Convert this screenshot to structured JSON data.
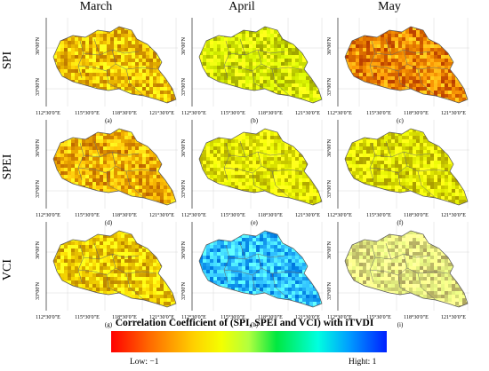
{
  "columns": [
    "March",
    "April",
    "May"
  ],
  "rows": [
    "SPI",
    "SPEI",
    "VCI"
  ],
  "panels": [
    {
      "label": "(a)",
      "index": "SPI",
      "month": "March",
      "dominant": "#f2c200"
    },
    {
      "label": "(b)",
      "index": "SPI",
      "month": "April",
      "dominant": "#d6f000"
    },
    {
      "label": "(c)",
      "index": "SPI",
      "month": "May",
      "dominant": "#f08a00"
    },
    {
      "label": "(d)",
      "index": "SPEI",
      "month": "March",
      "dominant": "#f2b000"
    },
    {
      "label": "(e)",
      "index": "SPEI",
      "month": "April",
      "dominant": "#e6f200"
    },
    {
      "label": "(f)",
      "index": "SPEI",
      "month": "May",
      "dominant": "#e0e800"
    },
    {
      "label": "(g)",
      "index": "VCI",
      "month": "March",
      "dominant": "#f2d000"
    },
    {
      "label": "(h)",
      "index": "VCI",
      "month": "April",
      "dominant": "#30c0ff"
    },
    {
      "label": "(i)",
      "index": "VCI",
      "month": "May",
      "dominant": "#e4f080"
    }
  ],
  "lat_ticks": [
    "36°00′N",
    "33°00′N"
  ],
  "lon_ticks": [
    "112°30′0″E",
    "115°30′0″E",
    "118°30′0″E",
    "121°30′0″E"
  ],
  "legend": {
    "title": "Correlation Coefficient of (SPI, SPEI and VCI) with iTVDI",
    "low_label": "Low: −1",
    "high_label": "Hight: 1",
    "colors": [
      "#ff0000",
      "#ff6a00",
      "#ffd000",
      "#f4ff00",
      "#b0ff40",
      "#00e840",
      "#00ffe0",
      "#00a0ff",
      "#0020ff"
    ]
  }
}
